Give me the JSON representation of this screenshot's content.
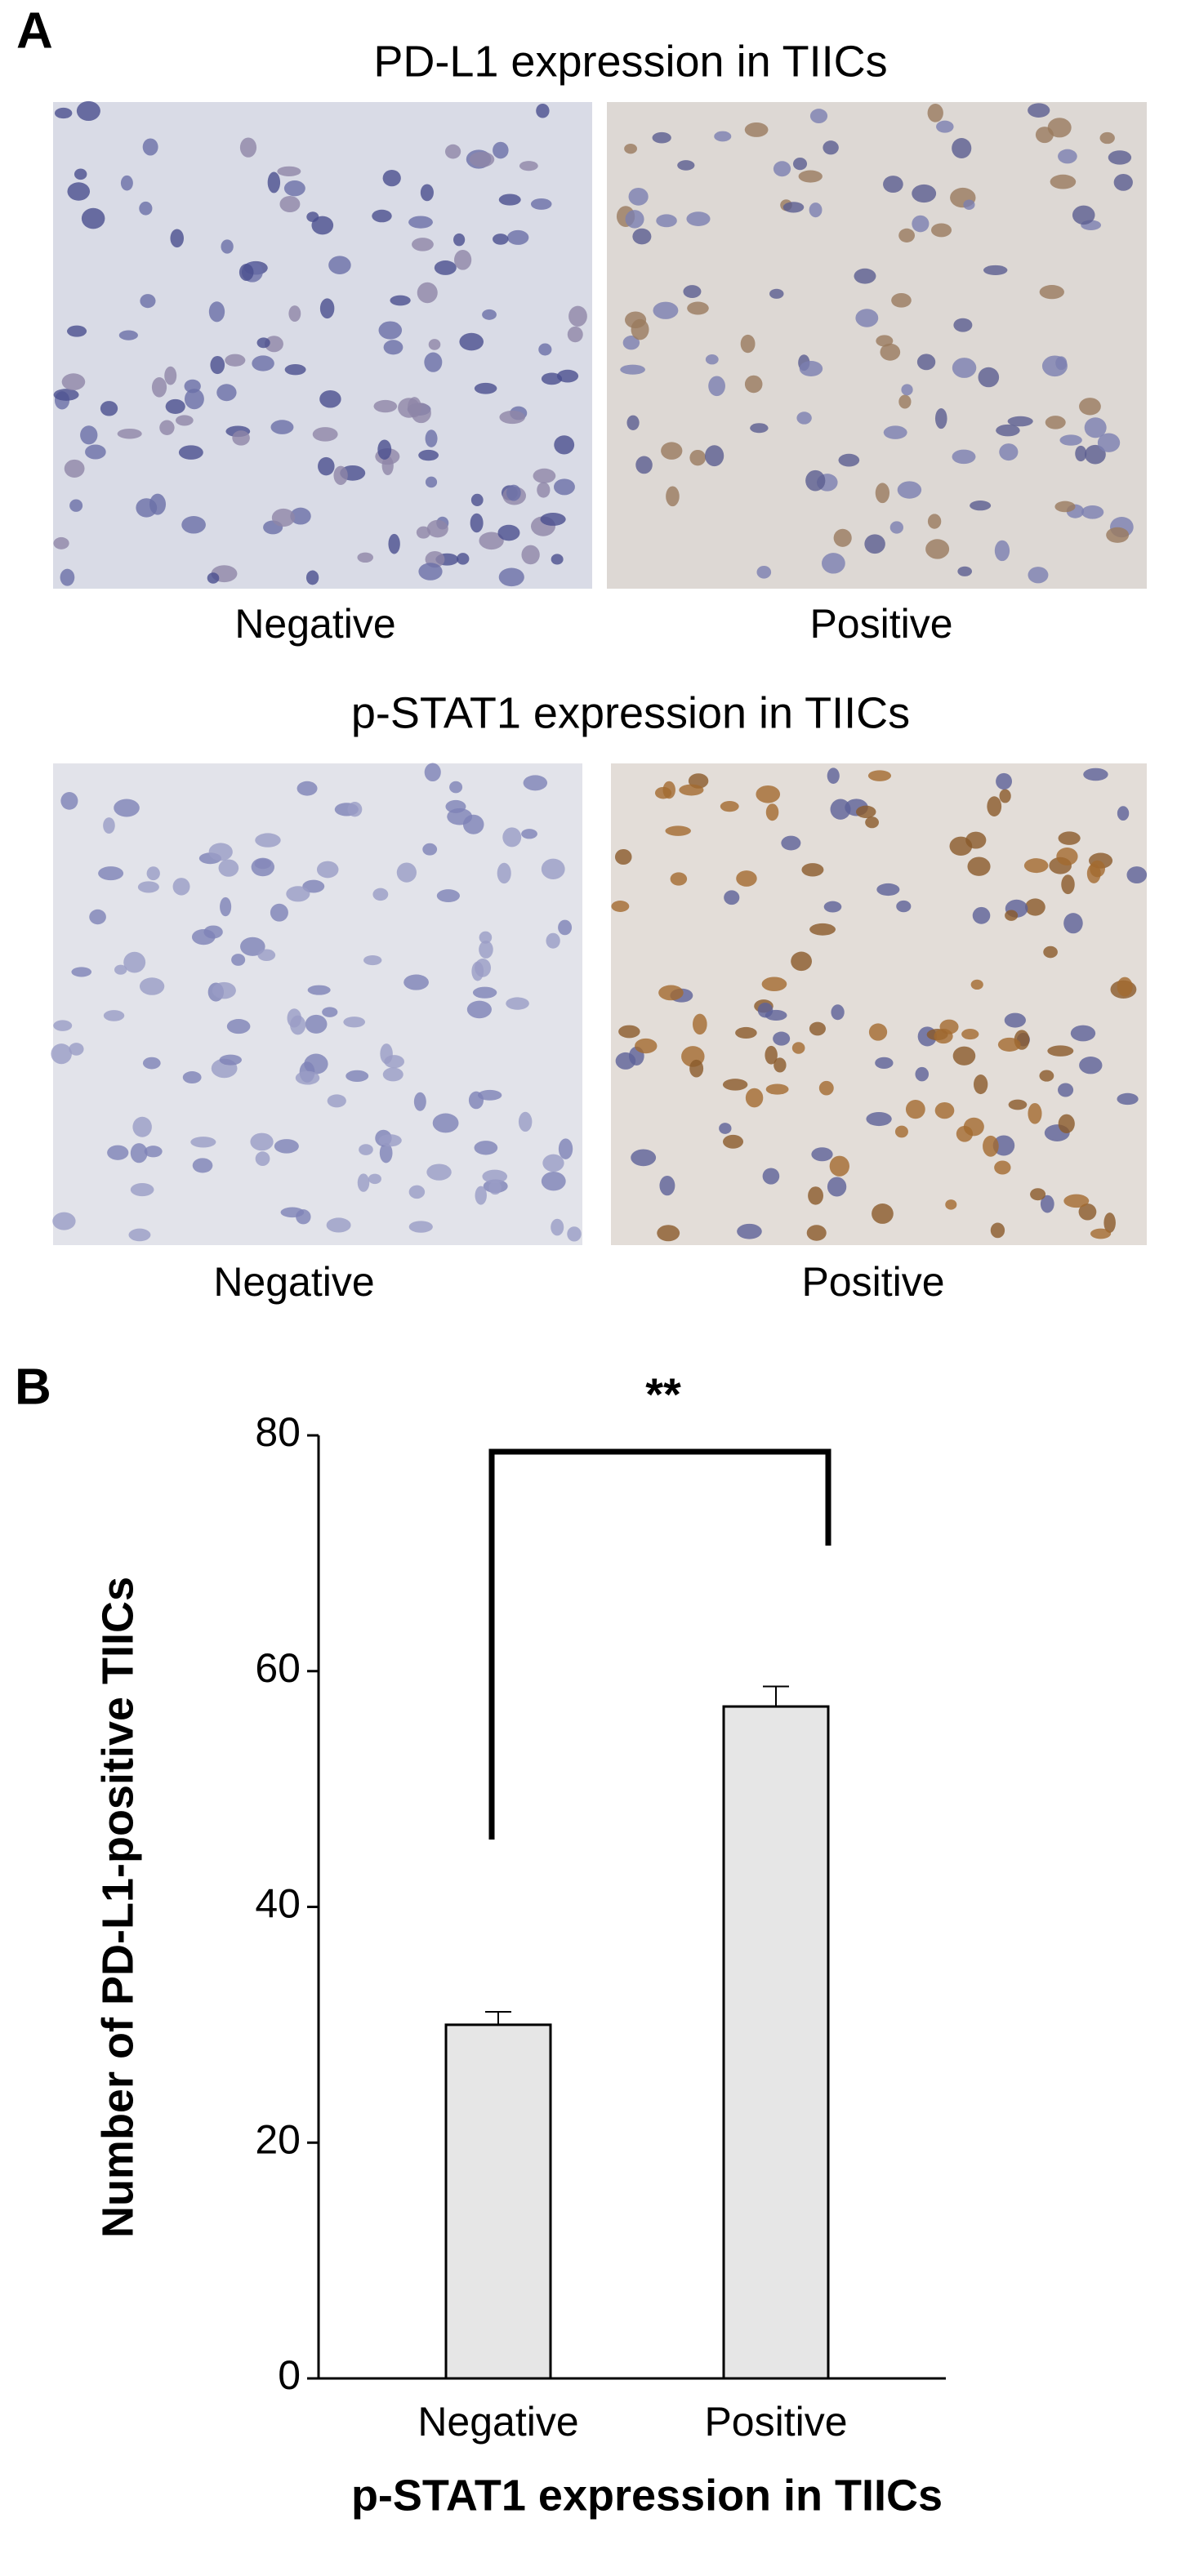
{
  "panel_a": {
    "label": "A",
    "pdl1": {
      "title": "PD-L1 expression in TIICs",
      "left": "Negative",
      "right": "Positive"
    },
    "pstat1": {
      "title": "p-STAT1 expression in TIICs",
      "left": "Negative",
      "right": "Positive"
    }
  },
  "chart_data": {
    "type": "bar",
    "panel_label": "B",
    "x_label": "p-STAT1 expression in TIICs",
    "y_label": "Number of PD-L1-positive TIICs",
    "categories": [
      "Negative",
      "Positive"
    ],
    "values": [
      30,
      57
    ],
    "errors": [
      1.1,
      1.7
    ],
    "color": "#e6e6e6",
    "annotation": "**",
    "ylim": [
      0,
      80
    ],
    "yticks": [
      0,
      20,
      40,
      60,
      80
    ]
  }
}
